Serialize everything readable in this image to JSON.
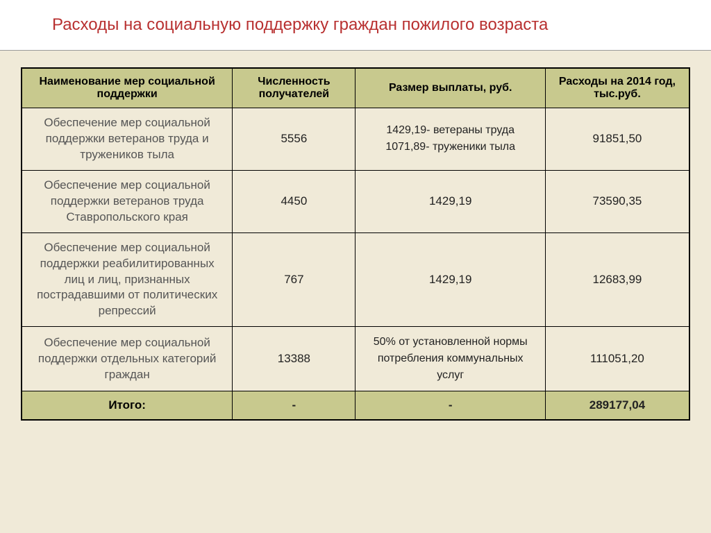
{
  "title": "Расходы на социальную поддержку граждан пожилого возраста",
  "headers": {
    "c1": "Наименование мер социальной поддержки",
    "c2": "Численность получателей",
    "c3": "Размер выплаты, руб.",
    "c4": "Расходы на 2014 год, тыс.руб."
  },
  "rows": [
    {
      "name": "Обеспечение мер социальной поддержки ветеранов труда и тружеников тыла",
      "count": "5556",
      "payment": "1429,19- ветераны труда\n1071,89- труженики тыла",
      "expense": "91851,50"
    },
    {
      "name": "Обеспечение мер социальной поддержки ветеранов труда Ставропольского края",
      "count": "4450",
      "payment": "1429,19",
      "expense": "73590,35"
    },
    {
      "name": "Обеспечение мер социальной поддержки реабилитированных лиц и лиц, признанных пострадавшими от политических репрессий",
      "count": "767",
      "payment": "1429,19",
      "expense": "12683,99"
    },
    {
      "name": "Обеспечение мер социальной поддержки отдельных категорий граждан",
      "count": "13388",
      "payment": "50% от установленной нормы потребления коммунальных услуг",
      "expense": "111051,20"
    }
  ],
  "total": {
    "label": "Итого:",
    "count": "-",
    "payment": "-",
    "expense": "289177,04"
  },
  "style": {
    "background": "#f0ead8",
    "header_bg": "#c8c98e",
    "title_color": "#b83030",
    "border_color": "#000000",
    "text_color": "#222222",
    "muted_text": "#555555"
  }
}
